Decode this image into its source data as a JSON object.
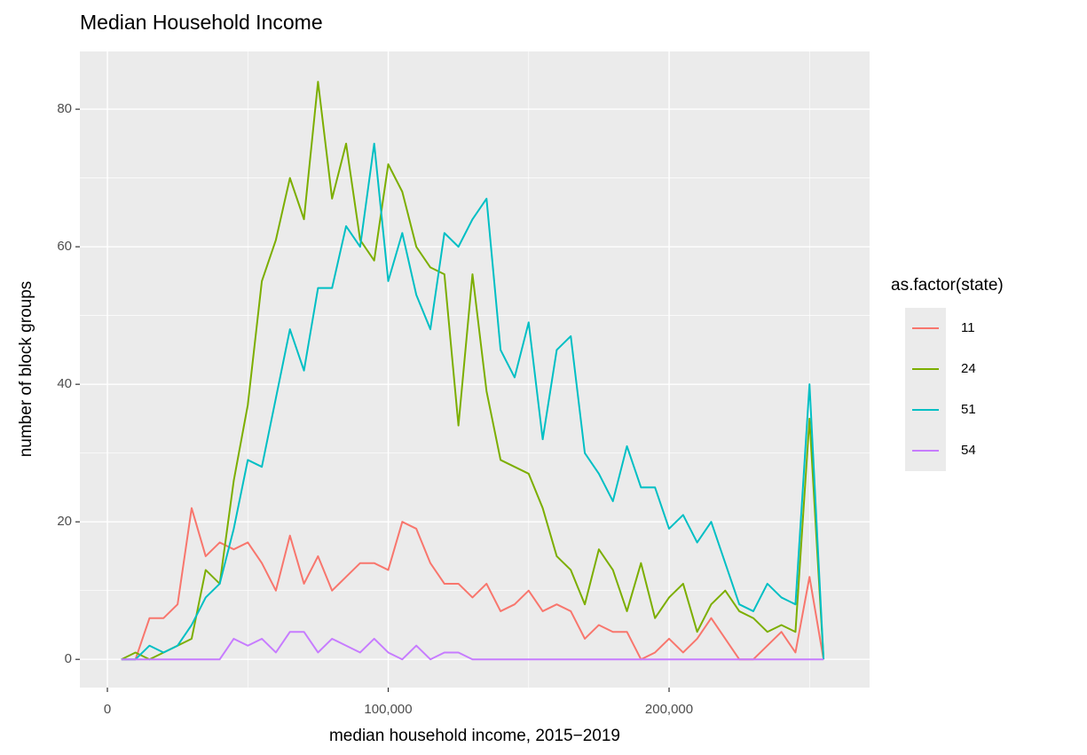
{
  "chart_data": {
    "type": "line",
    "title": "Median Household Income",
    "x_label": "median household income, 2015−2019",
    "y_label": "number of block groups",
    "legend_title": "as.factor(state)",
    "x": [
      5000,
      10000,
      15000,
      20000,
      25000,
      30000,
      35000,
      40000,
      45000,
      50000,
      55000,
      60000,
      65000,
      70000,
      75000,
      80000,
      85000,
      90000,
      95000,
      100000,
      105000,
      110000,
      115000,
      120000,
      125000,
      130000,
      135000,
      140000,
      145000,
      150000,
      155000,
      160000,
      165000,
      170000,
      175000,
      180000,
      185000,
      190000,
      195000,
      200000,
      205000,
      210000,
      215000,
      220000,
      225000,
      230000,
      235000,
      240000,
      245000,
      250000,
      255000
    ],
    "series": [
      {
        "name": "11",
        "color": "#F8766D",
        "values": [
          0,
          0,
          6,
          6,
          8,
          22,
          15,
          17,
          16,
          17,
          14,
          10,
          18,
          11,
          15,
          10,
          12,
          14,
          14,
          13,
          20,
          19,
          14,
          11,
          11,
          9,
          11,
          7,
          8,
          10,
          7,
          8,
          7,
          3,
          5,
          4,
          4,
          0,
          1,
          3,
          1,
          3,
          6,
          3,
          0,
          0,
          2,
          4,
          1,
          12,
          0
        ]
      },
      {
        "name": "24",
        "color": "#7CAE00",
        "values": [
          0,
          1,
          0,
          1,
          2,
          3,
          13,
          11,
          26,
          37,
          55,
          61,
          70,
          64,
          84,
          67,
          75,
          61,
          58,
          72,
          68,
          60,
          57,
          56,
          34,
          56,
          39,
          29,
          28,
          27,
          22,
          15,
          13,
          8,
          16,
          13,
          7,
          14,
          6,
          9,
          11,
          4,
          8,
          10,
          7,
          6,
          4,
          5,
          4,
          35,
          0
        ]
      },
      {
        "name": "51",
        "color": "#00BFC4",
        "values": [
          0,
          0,
          2,
          1,
          2,
          5,
          9,
          11,
          19,
          29,
          28,
          38,
          48,
          42,
          54,
          54,
          63,
          60,
          75,
          55,
          62,
          53,
          48,
          62,
          60,
          64,
          67,
          45,
          41,
          49,
          32,
          45,
          47,
          30,
          27,
          23,
          31,
          25,
          25,
          19,
          21,
          17,
          20,
          14,
          8,
          7,
          11,
          9,
          8,
          40,
          0
        ]
      },
      {
        "name": "54",
        "color": "#C77CFF",
        "values": [
          0,
          0,
          0,
          0,
          0,
          0,
          0,
          0,
          3,
          2,
          3,
          1,
          4,
          4,
          1,
          3,
          2,
          1,
          3,
          1,
          0,
          2,
          0,
          1,
          1,
          0,
          0,
          0,
          0,
          0,
          0,
          0,
          0,
          0,
          0,
          0,
          0,
          0,
          0,
          0,
          0,
          0,
          0,
          0,
          0,
          0,
          0,
          0,
          0,
          0,
          0
        ]
      }
    ],
    "xlim": [
      -9800,
      271400
    ],
    "ylim": [
      -4.1,
      88.4
    ],
    "xticks": [
      0,
      {
        "value": 100000,
        "label": "100,000"
      },
      {
        "value": 200000,
        "label": "200,000"
      }
    ],
    "yticks": [
      0,
      20,
      40,
      60,
      80
    ],
    "grid": true,
    "legend": "right"
  }
}
